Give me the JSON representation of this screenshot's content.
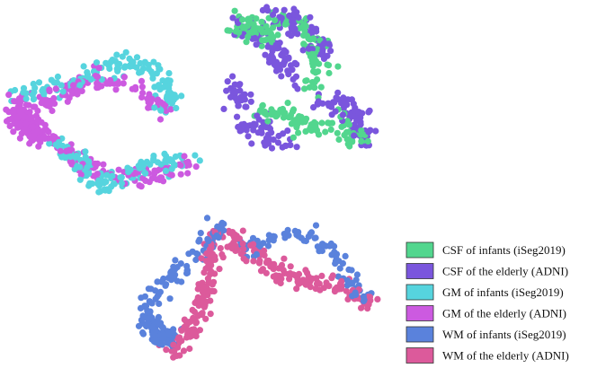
{
  "chart_data": {
    "type": "scatter",
    "title": "",
    "xlabel": "",
    "ylabel": "",
    "grid": false,
    "axes_visible": false,
    "legend_position": "bottom-right",
    "series": [
      {
        "name": "CSF of infants (iSeg2019)",
        "color": "#52d68e"
      },
      {
        "name": "CSF of the elderly (ADNI)",
        "color": "#7a56dd"
      },
      {
        "name": "GM of infants (iSeg2019)",
        "color": "#56d4de"
      },
      {
        "name": "GM of the elderly (ADNI)",
        "color": "#cc5ae0"
      },
      {
        "name": "WM of infants (iSeg2019)",
        "color": "#5a82dc"
      },
      {
        "name": "WM of the elderly (ADNI)",
        "color": "#dc5a9b"
      }
    ]
  }
}
